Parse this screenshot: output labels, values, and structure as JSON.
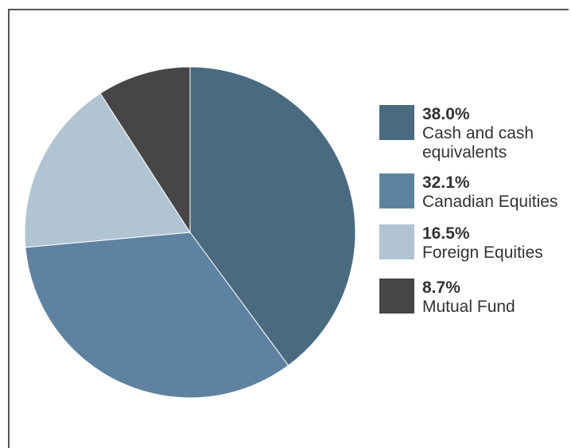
{
  "chart_data": {
    "type": "pie",
    "title": "",
    "slices": [
      {
        "label": "Cash and cash equivalents",
        "label_display": "Cash and cash\nequivalents",
        "percent_label": "38.0%",
        "value": 38.0,
        "color": "#4a6a80"
      },
      {
        "label": "Canadian Equities",
        "label_display": "Canadian Equities",
        "percent_label": "32.1%",
        "value": 32.1,
        "color": "#5e82a0"
      },
      {
        "label": "Foreign Equities",
        "label_display": "Foreign Equities",
        "percent_label": "16.5%",
        "value": 16.5,
        "color": "#b1c4d2"
      },
      {
        "label": "Mutual Fund",
        "label_display": "Mutual Fund",
        "percent_label": "8.7%",
        "value": 8.7,
        "color": "#464649"
      }
    ],
    "legend_position": "right"
  }
}
